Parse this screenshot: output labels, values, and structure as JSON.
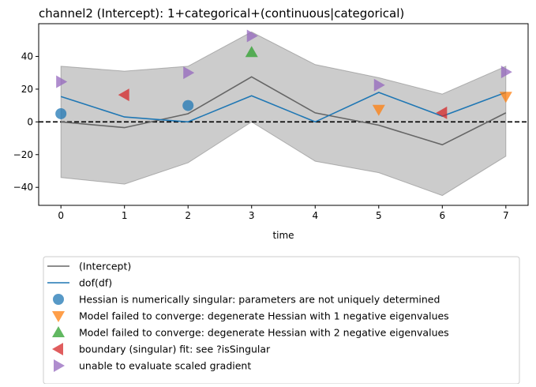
{
  "chart_data": {
    "type": "line",
    "title": "channel2 (Intercept): 1+categorical+(continuous|categorical)",
    "xlabel": "time",
    "ylabel": "",
    "xlim": [
      -0.35,
      7.35
    ],
    "ylim": [
      -51,
      60
    ],
    "x_ticks": [
      0,
      1,
      2,
      3,
      4,
      5,
      6,
      7
    ],
    "y_ticks": [
      -40,
      -20,
      0,
      20,
      40
    ],
    "grid": false,
    "zero_line": {
      "y": 0,
      "style": "dashed",
      "color": "#000000"
    },
    "band": {
      "name": "",
      "color": "#7f7f7f",
      "x": [
        0,
        1,
        2,
        3,
        4,
        5,
        6,
        7
      ],
      "lower": [
        -34,
        -38,
        -25,
        0,
        -24,
        -31,
        -45,
        -21
      ],
      "upper": [
        34,
        31,
        34,
        55,
        35,
        27,
        17,
        34
      ]
    },
    "series": [
      {
        "name": "(Intercept)",
        "color": "#666666",
        "x": [
          0,
          1,
          2,
          3,
          4,
          5,
          6,
          7
        ],
        "values": [
          0,
          -3.5,
          5,
          27.5,
          5.5,
          -2,
          -14,
          5.5
        ]
      },
      {
        "name": "dof(df)",
        "color": "#1f77b4",
        "x": [
          0,
          1,
          2,
          3,
          4,
          5,
          6,
          7
        ],
        "values": [
          15.5,
          3,
          0,
          16,
          0,
          18,
          3.5,
          18
        ]
      }
    ],
    "markers": [
      {
        "name": "Hessian is numerically singular: parameters are not uniquely determined",
        "shape": "circle",
        "color": "#1f77b4",
        "points": [
          [
            0,
            5
          ],
          [
            2,
            10
          ]
        ]
      },
      {
        "name": "Model failed to converge: degenerate  Hessian with 1 negative eigenvalues",
        "shape": "triangle-down",
        "color": "#ff7f0e",
        "points": [
          [
            5,
            7.5
          ],
          [
            7,
            15.5
          ]
        ]
      },
      {
        "name": "Model failed to converge: degenerate  Hessian with 2 negative eigenvalues",
        "shape": "triangle-up",
        "color": "#2ca02c",
        "points": [
          [
            3,
            42.5
          ]
        ]
      },
      {
        "name": "boundary (singular) fit: see ?isSingular",
        "shape": "triangle-left",
        "color": "#d62728",
        "points": [
          [
            1,
            16.5
          ],
          [
            6,
            5.5
          ]
        ]
      },
      {
        "name": "unable to evaluate scaled gradient",
        "shape": "triangle-right",
        "color": "#9467bd",
        "points": [
          [
            0,
            24.5
          ],
          [
            2,
            30
          ],
          [
            3,
            52.5
          ],
          [
            5,
            22.5
          ],
          [
            7,
            30.5
          ]
        ]
      }
    ],
    "legend": {
      "placement": "below",
      "entries": [
        {
          "label": "(Intercept)",
          "kind": "line",
          "color": "#666666"
        },
        {
          "label": "dof(df)",
          "kind": "line",
          "color": "#1f77b4"
        },
        {
          "label": "Hessian is numerically singular: parameters are not uniquely determined",
          "kind": "circle",
          "color": "#1f77b4"
        },
        {
          "label": "Model failed to converge: degenerate  Hessian with 1 negative eigenvalues",
          "kind": "triangle-down",
          "color": "#ff7f0e"
        },
        {
          "label": "Model failed to converge: degenerate  Hessian with 2 negative eigenvalues",
          "kind": "triangle-up",
          "color": "#2ca02c"
        },
        {
          "label": "boundary (singular) fit: see ?isSingular",
          "kind": "triangle-left",
          "color": "#d62728"
        },
        {
          "label": "unable to evaluate scaled gradient",
          "kind": "triangle-right",
          "color": "#9467bd"
        }
      ]
    }
  }
}
